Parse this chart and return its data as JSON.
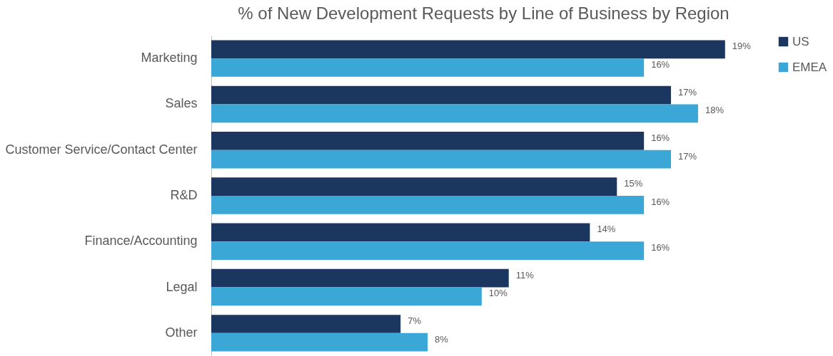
{
  "chart_data": {
    "type": "bar",
    "orientation": "horizontal",
    "title": "% of New Development Requests by Line of Business by Region",
    "categories": [
      "Marketing",
      "Sales",
      "Customer Service/Contact Center",
      "R&D",
      "Finance/Accounting",
      "Legal",
      "Other"
    ],
    "series": [
      {
        "name": "US",
        "color": "#1b375f",
        "values": [
          19,
          17,
          16,
          15,
          14,
          11,
          7
        ],
        "value_labels": [
          "19%",
          "17%",
          "16%",
          "15%",
          "14%",
          "11%",
          "7%"
        ]
      },
      {
        "name": "EMEA",
        "color": "#3aa7d6",
        "values": [
          16,
          18,
          17,
          16,
          16,
          10,
          8
        ],
        "value_labels": [
          "16%",
          "18%",
          "17%",
          "16%",
          "16%",
          "10%",
          "8%"
        ]
      }
    ],
    "legend": "right"
  }
}
